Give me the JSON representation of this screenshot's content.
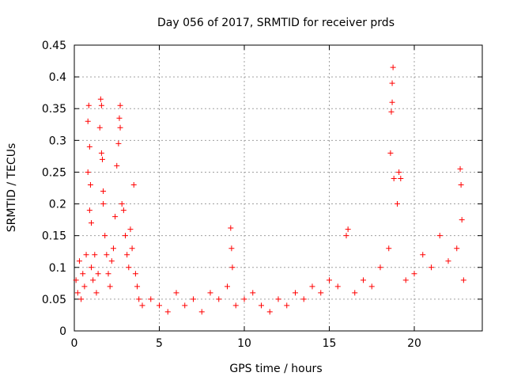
{
  "chart_data": {
    "type": "scatter",
    "title": "Day 056 of 2017, SRMTID for receiver prds",
    "xlabel": "GPS time / hours",
    "ylabel": "SRMTID / TECUs",
    "xlim": [
      0,
      24
    ],
    "ylim": [
      0,
      0.45
    ],
    "xticks": [
      0,
      5,
      10,
      15,
      20
    ],
    "xtick_labels": [
      "0",
      "5",
      "10",
      "15",
      "20"
    ],
    "yticks": [
      0,
      0.05,
      0.1,
      0.15,
      0.2,
      0.25,
      0.3,
      0.35,
      0.4,
      0.45
    ],
    "ytick_labels": [
      "0",
      "0.05",
      "0.1",
      "0.15",
      "0.2",
      "0.25",
      "0.3",
      "0.35",
      "0.4",
      "0.45"
    ],
    "grid": true,
    "marker": "+",
    "color": "#ff0000",
    "series": [
      {
        "name": "SRMTID",
        "points": [
          [
            0.1,
            0.08
          ],
          [
            0.2,
            0.06
          ],
          [
            0.3,
            0.11
          ],
          [
            0.4,
            0.05
          ],
          [
            0.5,
            0.09
          ],
          [
            0.6,
            0.07
          ],
          [
            0.7,
            0.12
          ],
          [
            0.8,
            0.25
          ],
          [
            0.8,
            0.33
          ],
          [
            0.85,
            0.355
          ],
          [
            0.9,
            0.19
          ],
          [
            0.9,
            0.29
          ],
          [
            0.95,
            0.23
          ],
          [
            1.0,
            0.17
          ],
          [
            1.0,
            0.1
          ],
          [
            1.1,
            0.08
          ],
          [
            1.2,
            0.12
          ],
          [
            1.3,
            0.06
          ],
          [
            1.4,
            0.09
          ],
          [
            1.5,
            0.32
          ],
          [
            1.55,
            0.365
          ],
          [
            1.6,
            0.355
          ],
          [
            1.6,
            0.28
          ],
          [
            1.65,
            0.27
          ],
          [
            1.7,
            0.22
          ],
          [
            1.7,
            0.2
          ],
          [
            1.8,
            0.15
          ],
          [
            1.9,
            0.12
          ],
          [
            2.0,
            0.09
          ],
          [
            2.1,
            0.07
          ],
          [
            2.2,
            0.11
          ],
          [
            2.3,
            0.13
          ],
          [
            2.4,
            0.18
          ],
          [
            2.5,
            0.26
          ],
          [
            2.6,
            0.295
          ],
          [
            2.65,
            0.335
          ],
          [
            2.7,
            0.355
          ],
          [
            2.7,
            0.32
          ],
          [
            2.8,
            0.2
          ],
          [
            2.9,
            0.19
          ],
          [
            3.0,
            0.15
          ],
          [
            3.1,
            0.12
          ],
          [
            3.2,
            0.1
          ],
          [
            3.3,
            0.16
          ],
          [
            3.4,
            0.13
          ],
          [
            3.5,
            0.23
          ],
          [
            3.6,
            0.09
          ],
          [
            3.7,
            0.07
          ],
          [
            3.8,
            0.05
          ],
          [
            4.0,
            0.04
          ],
          [
            4.5,
            0.05
          ],
          [
            5.0,
            0.04
          ],
          [
            5.5,
            0.03
          ],
          [
            6.0,
            0.06
          ],
          [
            6.5,
            0.04
          ],
          [
            7.0,
            0.05
          ],
          [
            7.5,
            0.03
          ],
          [
            8.0,
            0.06
          ],
          [
            8.5,
            0.05
          ],
          [
            9.0,
            0.07
          ],
          [
            9.2,
            0.162
          ],
          [
            9.25,
            0.13
          ],
          [
            9.3,
            0.1
          ],
          [
            9.5,
            0.04
          ],
          [
            10.0,
            0.05
          ],
          [
            10.5,
            0.06
          ],
          [
            11.0,
            0.04
          ],
          [
            11.5,
            0.03
          ],
          [
            12.0,
            0.05
          ],
          [
            12.5,
            0.04
          ],
          [
            13.0,
            0.06
          ],
          [
            13.5,
            0.05
          ],
          [
            14.0,
            0.07
          ],
          [
            14.5,
            0.06
          ],
          [
            15.0,
            0.08
          ],
          [
            15.5,
            0.07
          ],
          [
            16.0,
            0.15
          ],
          [
            16.1,
            0.16
          ],
          [
            16.5,
            0.06
          ],
          [
            17.0,
            0.08
          ],
          [
            17.5,
            0.07
          ],
          [
            18.0,
            0.1
          ],
          [
            18.5,
            0.13
          ],
          [
            18.6,
            0.28
          ],
          [
            18.65,
            0.345
          ],
          [
            18.7,
            0.36
          ],
          [
            18.7,
            0.39
          ],
          [
            18.75,
            0.415
          ],
          [
            18.8,
            0.24
          ],
          [
            19.0,
            0.2
          ],
          [
            19.1,
            0.25
          ],
          [
            19.2,
            0.24
          ],
          [
            19.5,
            0.08
          ],
          [
            20.0,
            0.09
          ],
          [
            20.5,
            0.12
          ],
          [
            21.0,
            0.1
          ],
          [
            21.5,
            0.15
          ],
          [
            22.0,
            0.11
          ],
          [
            22.5,
            0.13
          ],
          [
            22.7,
            0.255
          ],
          [
            22.75,
            0.23
          ],
          [
            22.8,
            0.175
          ],
          [
            22.9,
            0.08
          ]
        ]
      }
    ]
  }
}
